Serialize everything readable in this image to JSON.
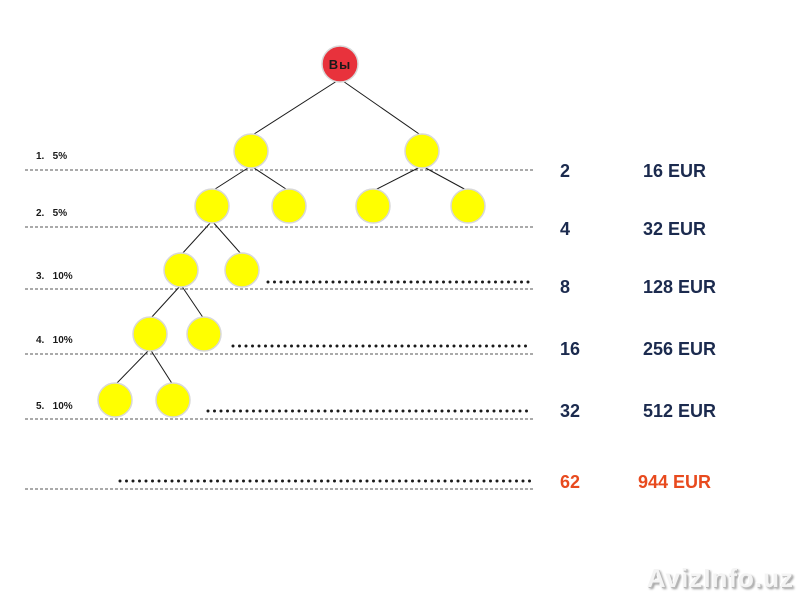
{
  "root": {
    "label": "Вы",
    "color": "#e8323c"
  },
  "node_color": "#ffff00",
  "levels": [
    {
      "label": "1.   5%",
      "count": "2",
      "amount": "16 EUR"
    },
    {
      "label": "2.   5%",
      "count": "4",
      "amount": "32 EUR"
    },
    {
      "label": "3.   10%",
      "count": "8",
      "amount": "128 EUR"
    },
    {
      "label": "4.   10%",
      "count": "16",
      "amount": "256 EUR"
    },
    {
      "label": "5.   10%",
      "count": "32",
      "amount": "512 EUR"
    }
  ],
  "total": {
    "count": "62",
    "amount": "944 EUR",
    "color": "#e84a1e"
  },
  "watermark": "AvizInfo.uz"
}
